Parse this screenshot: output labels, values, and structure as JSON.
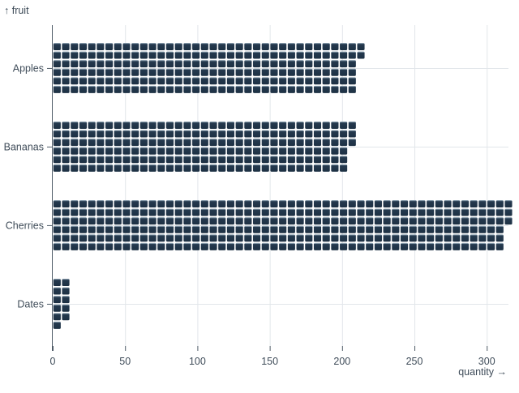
{
  "chart_data": {
    "type": "bar",
    "style": "waffle",
    "orientation": "horizontal",
    "title": "",
    "xlabel": "quantity →",
    "ylabel": "↑ fruit",
    "categories": [
      "Apples",
      "Bananas",
      "Cherries",
      "Dates"
    ],
    "values": [
      212,
      207,
      315,
      11
    ],
    "unit_per_cell": 1,
    "cells_per_column": 6,
    "x_ticks": [
      0,
      50,
      100,
      150,
      200,
      250,
      300
    ],
    "xlim": [
      0,
      315
    ],
    "grid": true,
    "legend": "none",
    "colors": {
      "cell_top_highlight": "#8296a6",
      "cell_body": "#253a4f",
      "cell_bottom": "#1d3043",
      "grid": "#e2e6ea",
      "axis": "#4e5a66",
      "text": "#3f4c59",
      "background": "#ffffff"
    }
  }
}
